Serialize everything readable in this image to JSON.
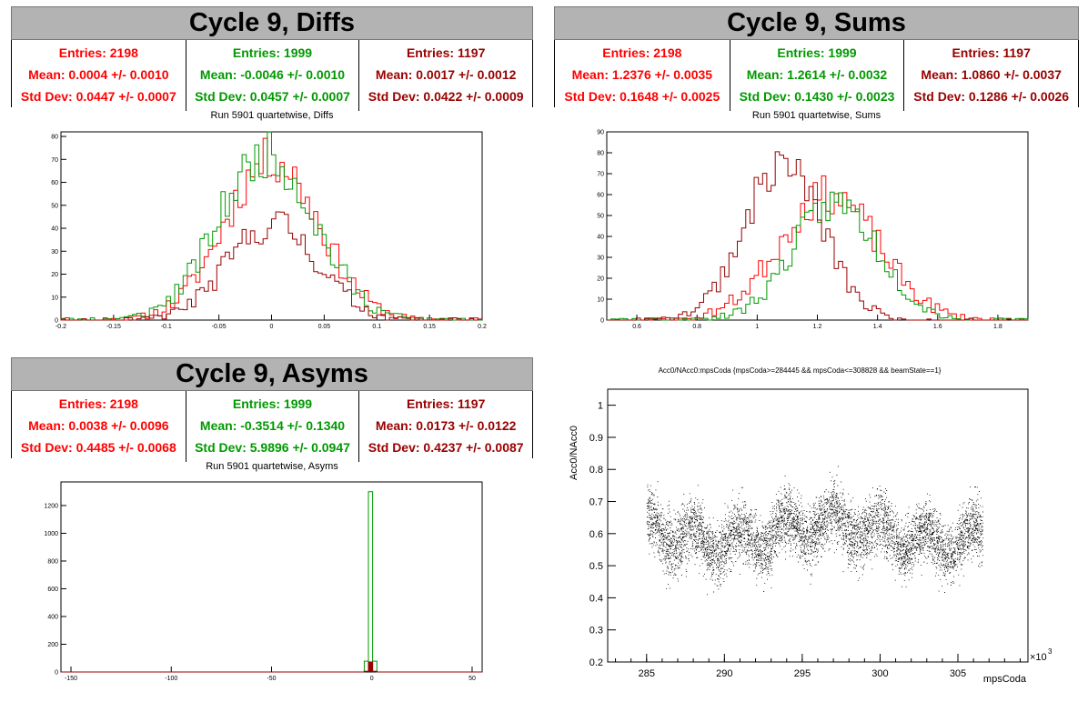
{
  "panels": {
    "diffs": {
      "header": "Cycle 9, Diffs",
      "stats": [
        {
          "entries": "Entries: 2198",
          "mean": "Mean: 0.0004 +/- 0.0010",
          "std": "Std Dev: 0.0447 +/- 0.0007"
        },
        {
          "entries": "Entries: 1999",
          "mean": "Mean: -0.0046 +/- 0.0010",
          "std": "Std Dev: 0.0457 +/- 0.0007"
        },
        {
          "entries": "Entries: 1197",
          "mean": "Mean: 0.0017 +/- 0.0012",
          "std": "Std Dev: 0.0422 +/- 0.0009"
        }
      ],
      "subtitle": "Run 5901 quartetwise, Diffs"
    },
    "sums": {
      "header": "Cycle 9, Sums",
      "stats": [
        {
          "entries": "Entries: 2198",
          "mean": "Mean: 1.2376 +/- 0.0035",
          "std": "Std Dev: 0.1648 +/- 0.0025"
        },
        {
          "entries": "Entries: 1999",
          "mean": "Mean: 1.2614 +/- 0.0032",
          "std": "Std Dev: 0.1430 +/- 0.0023"
        },
        {
          "entries": "Entries: 1197",
          "mean": "Mean: 1.0860 +/- 0.0037",
          "std": "Std Dev: 0.1286 +/- 0.0026"
        }
      ],
      "subtitle": "Run 5901 quartetwise, Sums"
    },
    "asyms": {
      "header": "Cycle 9, Asyms",
      "stats": [
        {
          "entries": "Entries: 2198",
          "mean": "Mean: 0.0038 +/- 0.0096",
          "std": "Std Dev: 0.4485 +/- 0.0068"
        },
        {
          "entries": "Entries: 1999",
          "mean": "Mean: -0.3514 +/- 0.1340",
          "std": "Std Dev: 5.9896 +/- 0.0947"
        },
        {
          "entries": "Entries: 1197",
          "mean": "Mean: 0.0173 +/- 0.0122",
          "std": "Std Dev: 0.4237 +/- 0.0087"
        }
      ],
      "subtitle": "Run 5901 quartetwise, Asyms"
    }
  },
  "colors": {
    "red": "#ff0000",
    "green": "#009900",
    "dark_red": "#990000"
  },
  "chart_data": [
    {
      "id": "diffs",
      "type": "bar",
      "style": "step-histogram",
      "xlim": [
        -0.2,
        0.2
      ],
      "ylim": [
        0,
        82
      ],
      "xticks": [
        "-0.2",
        "-0.15",
        "-0.1",
        "-0.05",
        "0",
        "0.05",
        "0.1",
        "0.15",
        "0.2"
      ],
      "yticks": [
        "0",
        "10",
        "20",
        "30",
        "40",
        "50",
        "60",
        "70",
        "80"
      ],
      "series": [
        {
          "color": "#ff0000",
          "shape": "gaussian",
          "entries": 2198,
          "mean": 0.0004,
          "std": 0.0447,
          "peak": 70
        },
        {
          "color": "#009900",
          "shape": "gaussian",
          "entries": 1999,
          "mean": -0.0046,
          "std": 0.0457,
          "peak": 72
        },
        {
          "color": "#990000",
          "shape": "gaussian",
          "entries": 1197,
          "mean": 0.0017,
          "std": 0.0422,
          "peak": 42
        }
      ]
    },
    {
      "id": "sums",
      "type": "bar",
      "style": "step-histogram",
      "xlim": [
        0.5,
        1.9
      ],
      "ylim": [
        0,
        90
      ],
      "xticks": [
        "0.6",
        "0.8",
        "1",
        "1.2",
        "1.4",
        "1.6",
        "1.8"
      ],
      "yticks": [
        "0",
        "10",
        "20",
        "30",
        "40",
        "50",
        "60",
        "70",
        "80",
        "90"
      ],
      "series": [
        {
          "color": "#ff0000",
          "shape": "gaussian",
          "entries": 2198,
          "mean": 1.2376,
          "std": 0.1648,
          "peak": 60
        },
        {
          "color": "#009900",
          "shape": "gaussian",
          "entries": 1999,
          "mean": 1.2614,
          "std": 0.143,
          "peak": 56
        },
        {
          "color": "#990000",
          "shape": "gaussian",
          "entries": 1197,
          "mean": 1.086,
          "std": 0.1286,
          "peak": 75
        }
      ]
    },
    {
      "id": "asyms",
      "type": "bar",
      "style": "step-histogram",
      "xlim": [
        -155,
        55
      ],
      "ylim": [
        0,
        1370
      ],
      "xticks": [
        "-150",
        "-100",
        "-50",
        "0",
        "50"
      ],
      "yticks": [
        "0",
        "200",
        "400",
        "600",
        "800",
        "1000",
        "1200"
      ],
      "series": [
        {
          "color": "#ff0000",
          "shape": "spike",
          "entries": 2198,
          "peak": 62
        },
        {
          "color": "#009900",
          "shape": "spike",
          "entries": 1999,
          "peak": 1300
        },
        {
          "color": "#990000",
          "shape": "spike",
          "entries": 1197,
          "peak": 72
        }
      ]
    },
    {
      "id": "acc0",
      "type": "scatter",
      "title": "Acc0/NAcc0:mpsCoda {mpsCoda>=284445 && mpsCoda<=308828 && beamState==1}",
      "xlabel": "mpsCoda",
      "ylabel": "Acc0/NAcc0",
      "x_multiplier": "×10",
      "x_multiplier_exp": "3",
      "xlim": [
        282.5,
        309.5
      ],
      "ylim": [
        0.2,
        1.05
      ],
      "xticks": [
        "285",
        "290",
        "295",
        "300",
        "305"
      ],
      "yticks": [
        "0.2",
        "0.3",
        "0.4",
        "0.5",
        "0.6",
        "0.7",
        "0.8",
        "0.9",
        "1"
      ],
      "point_color": "#000000",
      "x_range": [
        285.0,
        306.6
      ],
      "y_center": 0.6,
      "y_spread": 0.08,
      "n_points": 6000
    }
  ]
}
